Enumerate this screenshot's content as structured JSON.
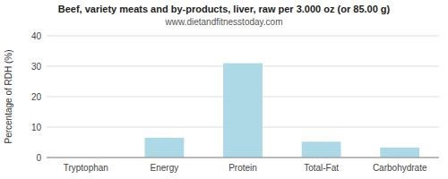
{
  "chart_data": {
    "type": "bar",
    "title": "Beef, variety meats and by-products, liver, raw per 3.000 oz (or 85.00 g)",
    "subtitle": "www.dietandfitnesstoday.com",
    "categories": [
      "Tryptophan",
      "Energy",
      "Protein",
      "Total-Fat",
      "Carbohydrate"
    ],
    "values": [
      0,
      6.5,
      31,
      5.2,
      3.3
    ],
    "color": "#add8e6",
    "y_label": "Percentage of RDH (%)",
    "ylim": [
      0,
      40
    ],
    "yticks": [
      0,
      10,
      20,
      30,
      40
    ],
    "grid": true
  }
}
